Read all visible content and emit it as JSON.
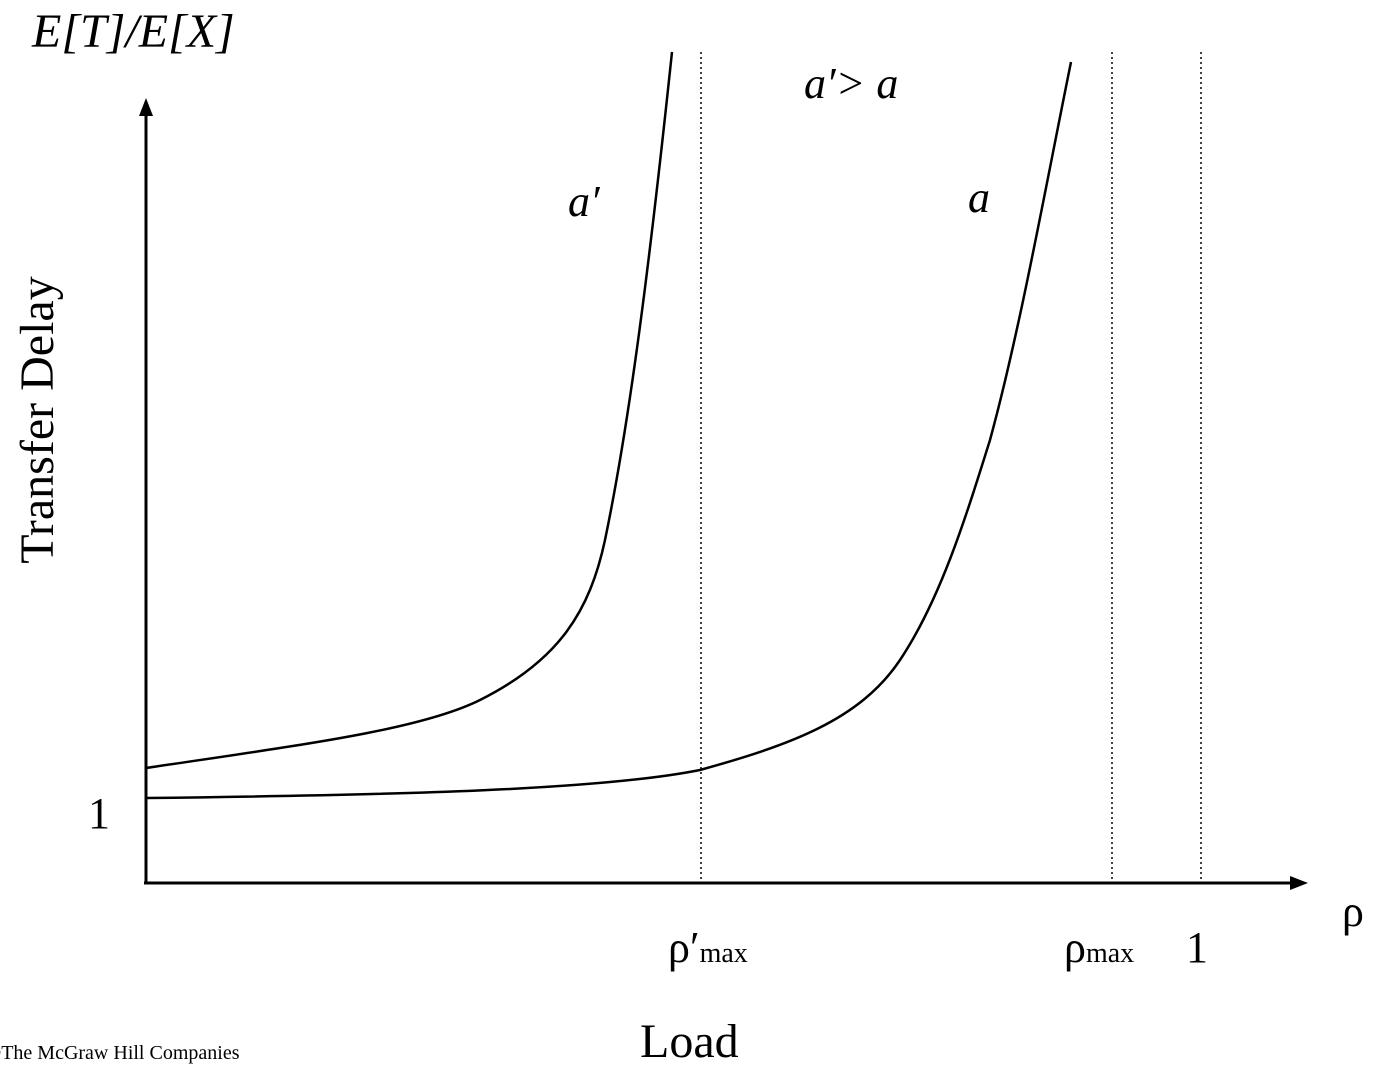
{
  "y_axis_top_label": "E[T]/E[X]",
  "y_axis_label": "Transfer Delay",
  "x_axis_label": "Load",
  "x_axis_symbol": "ρ",
  "y_tick_1": "1",
  "x_tick_rho_prime": {
    "base": "ρ′",
    "sub": "max"
  },
  "x_tick_rho": {
    "base": "ρ",
    "sub": "max"
  },
  "x_tick_1": "1",
  "curve_a_prime_label": "a′",
  "curve_a_label": "a",
  "relation_label": "a′> a",
  "copyright": "©The McGraw Hill Companies",
  "colors": {
    "line": "#000000",
    "background": "#ffffff"
  }
}
